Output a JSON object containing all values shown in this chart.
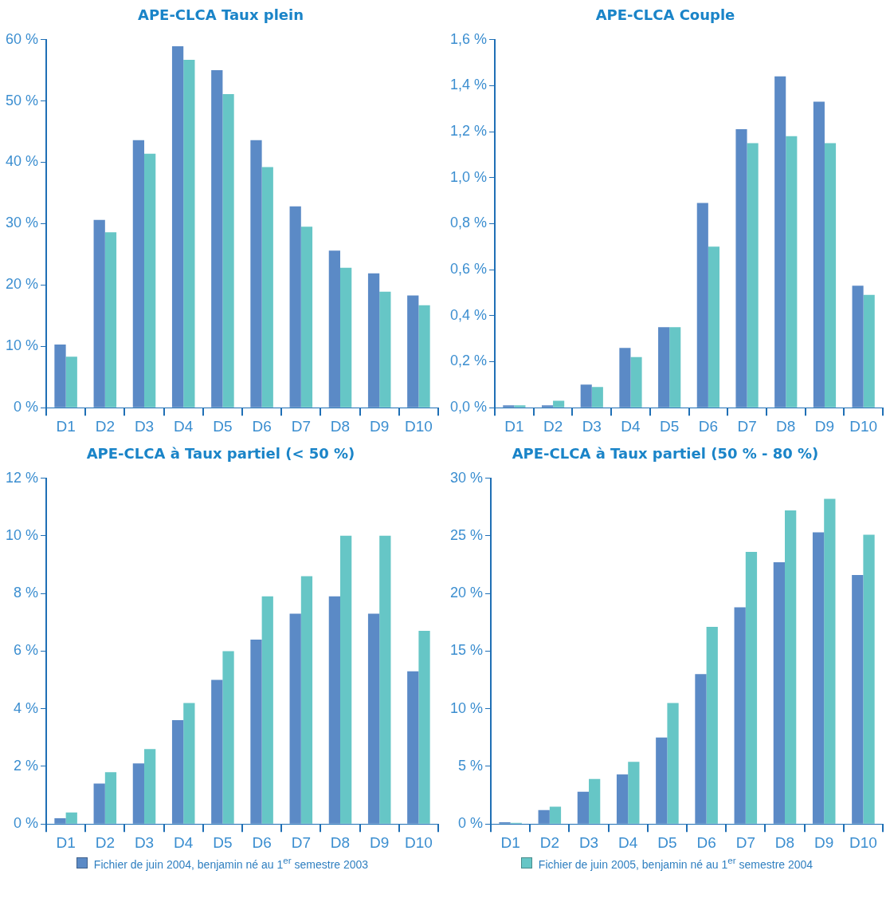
{
  "chart_data": [
    {
      "type": "bar",
      "title": "APE-CLCA Taux plein",
      "categories": [
        "D1",
        "D2",
        "D3",
        "D4",
        "D5",
        "D6",
        "D7",
        "D8",
        "D9",
        "D10"
      ],
      "series": [
        {
          "color": "#5b8ac6",
          "values": [
            10.3,
            30.6,
            43.6,
            58.9,
            55.0,
            43.6,
            32.8,
            25.6,
            21.9,
            18.3
          ]
        },
        {
          "color": "#66c6c6",
          "values": [
            8.3,
            28.6,
            41.4,
            56.7,
            51.1,
            39.2,
            29.5,
            22.8,
            18.9,
            16.7
          ]
        }
      ],
      "ylim": [
        0,
        60
      ],
      "yticks": [
        {
          "value": 0,
          "label": "0 %"
        },
        {
          "value": 10,
          "label": "10 %"
        },
        {
          "value": 20,
          "label": "20 %"
        },
        {
          "value": 30,
          "label": "30 %"
        },
        {
          "value": 40,
          "label": "40 %"
        },
        {
          "value": 50,
          "label": "50 %"
        },
        {
          "value": 60,
          "label": "60 %"
        }
      ],
      "grid": false,
      "legend": false
    },
    {
      "type": "bar",
      "title": "APE-CLCA Couple",
      "categories": [
        "D1",
        "D2",
        "D3",
        "D4",
        "D5",
        "D6",
        "D7",
        "D8",
        "D9",
        "D10"
      ],
      "series": [
        {
          "color": "#5b8ac6",
          "values": [
            0.01,
            0.01,
            0.1,
            0.26,
            0.35,
            0.89,
            1.21,
            1.44,
            1.33,
            0.53
          ]
        },
        {
          "color": "#66c6c6",
          "values": [
            0.01,
            0.03,
            0.09,
            0.22,
            0.35,
            0.7,
            1.15,
            1.18,
            1.15,
            0.49
          ]
        }
      ],
      "ylim": [
        0,
        1.6
      ],
      "yticks": [
        {
          "value": 0,
          "label": "0,0 %"
        },
        {
          "value": 0.2,
          "label": "0,2 %"
        },
        {
          "value": 0.4,
          "label": "0,4 %"
        },
        {
          "value": 0.6,
          "label": "0,6 %"
        },
        {
          "value": 0.8,
          "label": "0,8 %"
        },
        {
          "value": 1.0,
          "label": "1,0 %"
        },
        {
          "value": 1.2,
          "label": "1,2 %"
        },
        {
          "value": 1.4,
          "label": "1,4 %"
        },
        {
          "value": 1.6,
          "label": "1,6 %"
        }
      ],
      "grid": false,
      "legend": false
    },
    {
      "type": "bar",
      "title": "APE-CLCA à Taux partiel (< 50 %)",
      "categories": [
        "D1",
        "D2",
        "D3",
        "D4",
        "D5",
        "D6",
        "D7",
        "D8",
        "D9",
        "D10"
      ],
      "series": [
        {
          "name": "Fichier de juin 2004, benjamin né au 1$^{er}$ semestre 2003",
          "color": "#5b8ac6",
          "values": [
            0.2,
            1.4,
            2.1,
            3.6,
            5.0,
            6.4,
            7.3,
            7.9,
            7.3,
            5.3
          ]
        },
        {
          "color": "#66c6c6",
          "values": [
            0.4,
            1.8,
            2.6,
            4.2,
            6.0,
            7.9,
            8.6,
            10.0,
            10.0,
            6.7
          ]
        }
      ],
      "ylim": [
        0,
        12
      ],
      "yticks": [
        {
          "value": 0,
          "label": "0 %"
        },
        {
          "value": 2,
          "label": "2 %"
        },
        {
          "value": 4,
          "label": "4 %"
        },
        {
          "value": 6,
          "label": "6 %"
        },
        {
          "value": 8,
          "label": "8 %"
        },
        {
          "value": 10,
          "label": "10 %"
        },
        {
          "value": 12,
          "label": "12 %"
        }
      ],
      "grid": false,
      "legend": "bottom"
    },
    {
      "type": "bar",
      "title": "APE-CLCA à Taux partiel (50 % - 80 %)",
      "categories": [
        "D1",
        "D2",
        "D3",
        "D4",
        "D5",
        "D6",
        "D7",
        "D8",
        "D9",
        "D10"
      ],
      "series": [
        {
          "color": "#5b8ac6",
          "values": [
            0.15,
            1.2,
            2.8,
            4.3,
            7.5,
            13.0,
            18.8,
            22.7,
            25.3,
            21.6
          ]
        },
        {
          "name": "Fichier de juin 2005, benjamin né au 1$^{er}$ semestre 2004",
          "color": "#66c6c6",
          "values": [
            0.1,
            1.5,
            3.9,
            5.4,
            10.5,
            17.1,
            23.6,
            27.2,
            28.2,
            25.1
          ]
        }
      ],
      "ylim": [
        0,
        30
      ],
      "yticks": [
        {
          "value": 0,
          "label": "0 %"
        },
        {
          "value": 5,
          "label": "5 %"
        },
        {
          "value": 10,
          "label": "10 %"
        },
        {
          "value": 15,
          "label": "15 %"
        },
        {
          "value": 20,
          "label": "20 %"
        },
        {
          "value": 25,
          "label": "25 %"
        },
        {
          "value": 30,
          "label": "30 %"
        }
      ],
      "grid": false,
      "legend": "bottom"
    }
  ]
}
